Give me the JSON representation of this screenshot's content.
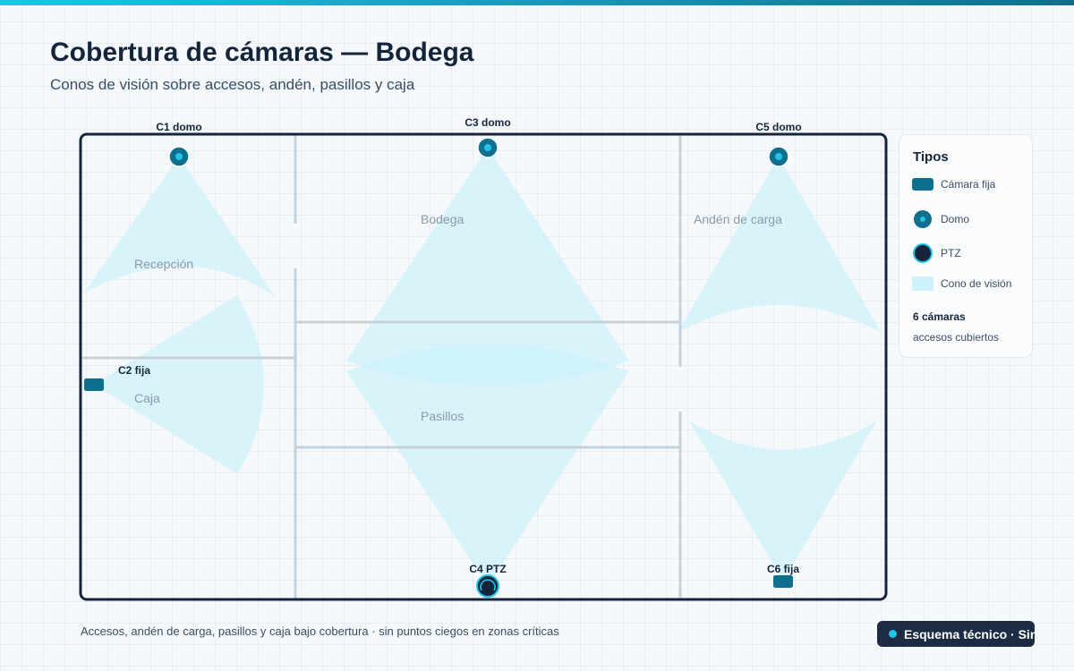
{
  "header": {
    "title": "Cobertura de cámaras — Bodega",
    "subtitle": "Conos de visión sobre accesos, andén, pasillos y caja"
  },
  "rooms": {
    "recepcion": "Recepción",
    "caja": "Caja",
    "bodega": "Bodega",
    "pasillos": "Pasillos",
    "anden": "Andén de carga"
  },
  "cameras": {
    "c1": {
      "label": "C1 domo",
      "type": "domo"
    },
    "c2": {
      "label": "C2 fija",
      "type": "fija"
    },
    "c3": {
      "label": "C3 domo",
      "type": "domo"
    },
    "c4": {
      "label": "C4 PTZ",
      "type": "ptz"
    },
    "c5": {
      "label": "C5 domo",
      "type": "domo"
    },
    "c6": {
      "label": "C6 fija",
      "type": "fija"
    }
  },
  "legend": {
    "title": "Tipos",
    "items": {
      "fixed": "Cámara fija",
      "dome": "Domo",
      "ptz": "PTZ",
      "cone": "Cono de visión"
    },
    "count": "6 cámaras",
    "note": "accesos cubiertos"
  },
  "footer": {
    "note": "Accesos, andén de carga, pasillos y caja bajo cobertura · sin puntos ciegos en zonas críticas",
    "badge": "Esquema técnico · SinCodear"
  },
  "colors": {
    "accent": "#22c3e6",
    "camera": "#0f6f8e",
    "dark": "#14253b",
    "cone": "#cdf2fa",
    "wall": "#c5d2dc"
  }
}
